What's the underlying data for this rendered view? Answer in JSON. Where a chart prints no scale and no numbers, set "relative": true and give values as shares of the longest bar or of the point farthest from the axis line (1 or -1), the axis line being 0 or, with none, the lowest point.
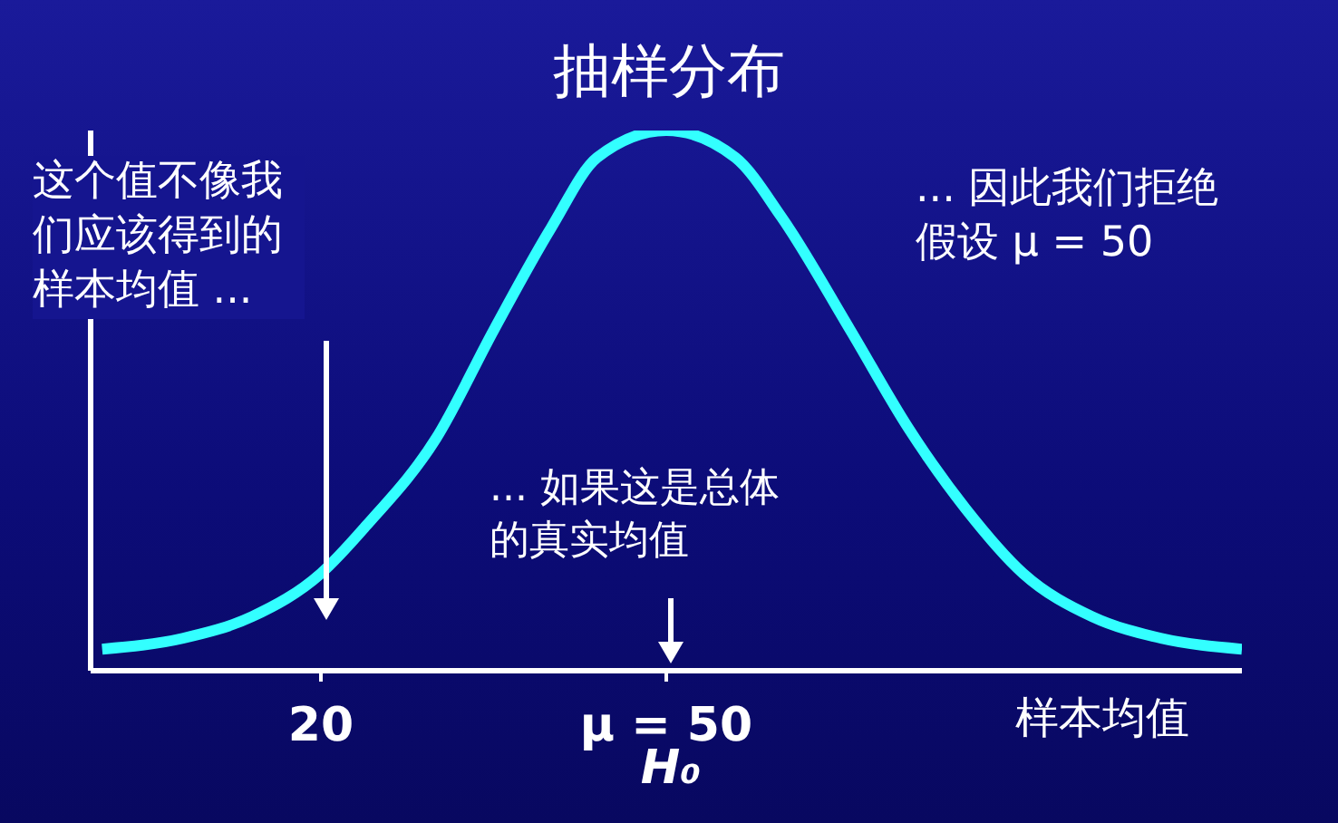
{
  "chart_data": {
    "type": "line",
    "title": "抽样分布",
    "xlabel": "样本均值",
    "relative": true,
    "tick_labels": "x",
    "marker": "none",
    "line_style": "solid",
    "xlim": [
      0,
      100
    ],
    "xticks": [
      {
        "value": 20,
        "label": "20"
      },
      {
        "value": 50,
        "label": "μ = 50"
      }
    ],
    "x": [
      1,
      8,
      14,
      20,
      24,
      30,
      35,
      40,
      44,
      50,
      56,
      60,
      66,
      71,
      76,
      81,
      87,
      93,
      100
    ],
    "series": [
      {
        "color": "#33ffff",
        "values": [
          0.04,
          0.06,
          0.1,
          0.18,
          0.27,
          0.43,
          0.63,
          0.82,
          0.95,
          1,
          0.95,
          0.84,
          0.63,
          0.45,
          0.3,
          0.18,
          0.1,
          0.06,
          0.04
        ]
      }
    ],
    "annotations": [
      "这个值不像我们应该得到的样本均值 ...",
      "... 因此我们拒绝假设 μ = 50",
      "... 如果这是总体的真实均值",
      "H₀"
    ]
  }
}
